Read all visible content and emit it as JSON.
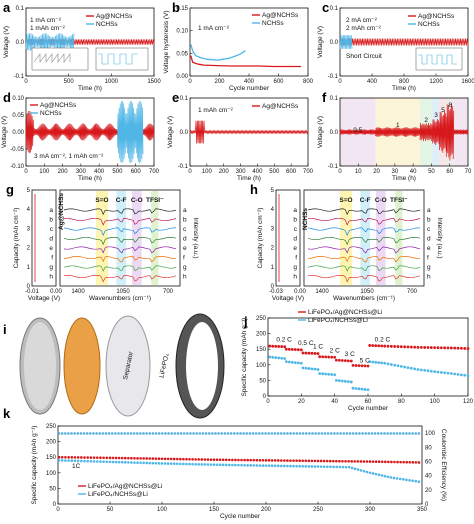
{
  "colors": {
    "red": "#d7191c",
    "blue": "#4fb6e6",
    "black": "#111111"
  },
  "panel_labels": [
    "a",
    "b",
    "c",
    "d",
    "e",
    "f",
    "g",
    "h",
    "i",
    "j",
    "k"
  ],
  "chart_data": [
    {
      "panel": "a",
      "type": "line",
      "annotations": [
        "1 mA cm⁻²",
        "1 mAh cm⁻²"
      ],
      "legend": [
        "Ag@NCHSs",
        "NCHSs"
      ],
      "xlabel": "Time (h)",
      "ylabel": "Voltage (V)",
      "xticks": [
        "0",
        "500",
        "1000",
        "1500"
      ],
      "yticks": [
        "-0.1",
        "0.0",
        "0.1"
      ],
      "xlim": [
        0,
        1600
      ],
      "ylim": [
        -0.15,
        0.15
      ],
      "series": [
        {
          "name": "Ag@NCHSs",
          "x": [
            0,
            1600
          ],
          "amplitude": 0.012
        },
        {
          "name": "NCHSs",
          "x": [
            0,
            600
          ],
          "amplitude": 0.03
        }
      ]
    },
    {
      "panel": "b",
      "type": "line",
      "annotations": [
        "1 mA cm⁻²"
      ],
      "legend": [
        "Ag@NCHSs",
        "NCHSs"
      ],
      "xlabel": "Cycle number",
      "ylabel": "Voltage hysteresis (V)",
      "xticks": [
        "0",
        "200",
        "400",
        "600",
        "800"
      ],
      "yticks": [
        "0.00",
        "0.05",
        "0.10",
        "0.15"
      ],
      "xlim": [
        0,
        850
      ],
      "ylim": [
        0,
        0.15
      ],
      "series": [
        {
          "name": "NCHSs",
          "x": [
            5,
            20,
            40,
            80,
            120,
            160,
            200,
            240,
            280,
            320,
            360,
            380,
            400
          ],
          "y": [
            0.07,
            0.055,
            0.045,
            0.04,
            0.037,
            0.036,
            0.035,
            0.037,
            0.039,
            0.043,
            0.048,
            0.052,
            0.056
          ]
        },
        {
          "name": "Ag@NCHSs",
          "x": [
            5,
            20,
            60,
            100,
            200,
            300,
            400,
            500,
            600,
            700,
            800
          ],
          "y": [
            0.045,
            0.03,
            0.026,
            0.024,
            0.023,
            0.022,
            0.022,
            0.022,
            0.021,
            0.021,
            0.021
          ]
        }
      ]
    },
    {
      "panel": "c",
      "type": "line",
      "annotations": [
        "2 mA cm⁻²",
        "2 mAh cm⁻²",
        "Short Circuit"
      ],
      "legend": [
        "Ag@NCHSs",
        "NCHSs"
      ],
      "xlabel": "Time (h)",
      "ylabel": "Voltage (V)",
      "xticks": [
        "0",
        "400",
        "800",
        "1200",
        "1600"
      ],
      "yticks": [
        "-0.1",
        "0.0",
        "0.1"
      ],
      "xlim": [
        0,
        1600
      ],
      "ylim": [
        -0.15,
        0.15
      ],
      "series": [
        {
          "name": "Ag@NCHSs",
          "x": [
            0,
            1600
          ],
          "amplitude": 0.015
        },
        {
          "name": "NCHSs",
          "x": [
            0,
            150
          ],
          "amplitude": 0.03
        }
      ]
    },
    {
      "panel": "d",
      "type": "line",
      "annotations": [
        "3 mA cm⁻², 1 mAh cm⁻²"
      ],
      "legend": [
        "Ag@NCHSs",
        "NCHSs"
      ],
      "xlabel": "Time (h)",
      "ylabel": "Voltage (V)",
      "xticks": [
        "0",
        "100",
        "200",
        "300",
        "400",
        "500",
        "600",
        "700"
      ],
      "yticks": [
        "-0.10",
        "-0.05",
        "0.00",
        "0.05",
        "0.10"
      ],
      "xlim": [
        0,
        700
      ],
      "ylim": [
        -0.12,
        0.12
      ],
      "series": [
        {
          "name": "Ag@NCHSs",
          "x": [
            0,
            700
          ],
          "amplitude": 0.025
        },
        {
          "name": "NCHSs",
          "x": [
            500,
            640
          ],
          "amplitude": 0.11
        }
      ]
    },
    {
      "panel": "e",
      "type": "line",
      "annotations": [
        "1 mAh cm⁻²"
      ],
      "legend": [
        "Ag@NCHSs"
      ],
      "xlabel": "Time (h)",
      "ylabel": "Voltage (V)",
      "xticks": [
        "0",
        "100",
        "200",
        "300",
        "400",
        "500",
        "600",
        "700"
      ],
      "yticks": [
        "-0.1",
        "0.0",
        "0.1"
      ],
      "xlim": [
        0,
        700
      ],
      "ylim": [
        -0.15,
        0.15
      ],
      "series": [
        {
          "name": "Ag@NCHSs",
          "x": [
            0,
            700
          ],
          "amplitude": 0.005
        }
      ]
    },
    {
      "panel": "f",
      "type": "line",
      "annotations": [
        "0.5",
        "1",
        "2",
        "3",
        "5",
        "8"
      ],
      "xlabel": "Time (h)",
      "ylabel": "Voltage (V)",
      "xticks": [
        "0",
        "10",
        "20",
        "30",
        "40",
        "50",
        "60",
        "70"
      ],
      "yticks": [
        "-0.1",
        "0.0",
        "0.1"
      ],
      "xlim": [
        0,
        72
      ],
      "ylim": [
        -0.15,
        0.15
      ],
      "steps": [
        {
          "rate": "0.5",
          "x": [
            0,
            20
          ],
          "amplitude": 0.01
        },
        {
          "rate": "1",
          "x": [
            20,
            45
          ],
          "amplitude": 0.018
        },
        {
          "rate": "2",
          "x": [
            45,
            52
          ],
          "amplitude": 0.035
        },
        {
          "rate": "3",
          "x": [
            52,
            56
          ],
          "amplitude": 0.05
        },
        {
          "rate": "5",
          "x": [
            56,
            60
          ],
          "amplitude": 0.08
        },
        {
          "rate": "8",
          "x": [
            60,
            64
          ],
          "amplitude": 0.11
        },
        {
          "rate": "0.5",
          "x": [
            64,
            72
          ],
          "amplitude": 0.01
        }
      ]
    },
    {
      "panel": "g",
      "type": "line",
      "legend": [
        "Ag@NCHSs"
      ],
      "stack_labels": [
        "a",
        "b",
        "c",
        "d",
        "e",
        "f",
        "g",
        "h"
      ],
      "band_labels": [
        "S=O",
        "C-F",
        "C-O",
        "TFSI⁻"
      ],
      "xlabel_left": "Voltage (V)",
      "xlabel_right": "Wavenumbers (cm⁻¹)",
      "ylabel_left": "Capacity (mAh cm⁻²)",
      "ylabel_right": "Intensity (a.u.)",
      "xticks_left": [
        "-0.01",
        "0.00"
      ],
      "xticks_right": [
        "1400",
        "1050",
        "700"
      ],
      "yticks": [
        "0",
        "1",
        "2",
        "3",
        "4",
        "5"
      ],
      "ylim": [
        0,
        5
      ]
    },
    {
      "panel": "h",
      "type": "line",
      "legend": [
        "NCHSs"
      ],
      "stack_labels": [
        "a",
        "b",
        "c",
        "d",
        "e",
        "f",
        "g",
        "h"
      ],
      "band_labels": [
        "S=O",
        "C-F",
        "C-O",
        "TFSI⁻"
      ],
      "xlabel_left": "Voltage (V)",
      "xlabel_right": "Wavenumbers (cm⁻¹)",
      "ylabel_left": "Capacity (mAh cm⁻²)",
      "ylabel_right": "Intensity (a.u.)",
      "xticks_left": [
        "-0.03",
        "0.00"
      ],
      "xticks_right": [
        "1400",
        "1050",
        "700"
      ],
      "yticks": [
        "0",
        "1",
        "2",
        "3",
        "4",
        "5"
      ],
      "ylim": [
        0,
        5
      ]
    },
    {
      "panel": "j",
      "type": "scatter",
      "legend": [
        "LiFePO₄/Ag@NCHSs@Li",
        "LiFePO₄/NCHSs@Li"
      ],
      "rate_labels": [
        "0.2 C",
        "0.5 C",
        "1 C",
        "2 C",
        "3 C",
        "5 C",
        "0.2 C"
      ],
      "xlabel": "Cycle number",
      "ylabel": "Specific capacity (mAh g⁻¹)",
      "xticks": [
        "0",
        "20",
        "40",
        "60",
        "80",
        "100",
        "120"
      ],
      "yticks": [
        "0",
        "50",
        "100",
        "150",
        "200",
        "250"
      ],
      "xlim": [
        0,
        120
      ],
      "ylim": [
        0,
        250
      ],
      "series": [
        {
          "name": "LiFePO₄/Ag@NCHSs@Li",
          "x": [
            1,
            10,
            11,
            20,
            21,
            30,
            31,
            40,
            41,
            50,
            51,
            60,
            61,
            70,
            80,
            90,
            100,
            110,
            120
          ],
          "y": [
            160,
            158,
            150,
            148,
            138,
            136,
            126,
            124,
            115,
            112,
            98,
            96,
            162,
            160,
            158,
            156,
            155,
            154,
            152
          ]
        },
        {
          "name": "LiFePO₄/NCHSs@Li",
          "x": [
            1,
            10,
            11,
            20,
            21,
            30,
            31,
            40,
            41,
            50,
            51,
            60,
            61,
            70,
            80,
            90,
            100,
            110,
            120
          ],
          "y": [
            125,
            120,
            110,
            105,
            90,
            85,
            72,
            68,
            50,
            45,
            25,
            20,
            110,
            105,
            95,
            85,
            78,
            72,
            65
          ]
        }
      ]
    },
    {
      "panel": "k",
      "type": "scatter",
      "annotations": [
        "1C"
      ],
      "legend": [
        "LiFePO₄/Ag@NCHSs@Li",
        "LiFePO₄/NCHSs@Li"
      ],
      "xlabel": "Cycle number",
      "ylabel": "Specific capacity (mAh g⁻¹)",
      "ylabel_right": "Coulombic Efficiency (%)",
      "xticks": [
        "0",
        "50",
        "100",
        "150",
        "200",
        "250",
        "300",
        "350"
      ],
      "yticks": [
        "0",
        "50",
        "100",
        "150",
        "200",
        "250"
      ],
      "yticks_right": [
        "0",
        "20",
        "40",
        "60",
        "80",
        "100"
      ],
      "xlim": [
        0,
        350
      ],
      "ylim": [
        0,
        250
      ],
      "ylim_right": [
        0,
        110
      ],
      "series": [
        {
          "name": "LiFePO₄/Ag@NCHSs@Li",
          "x": [
            1,
            50,
            100,
            150,
            200,
            250,
            300,
            350
          ],
          "y": [
            150,
            148,
            145,
            142,
            140,
            138,
            136,
            133
          ]
        },
        {
          "name": "LiFePO₄/NCHSs@Li",
          "x": [
            1,
            50,
            100,
            150,
            200,
            250,
            280,
            300,
            320,
            350
          ],
          "y": [
            140,
            135,
            130,
            126,
            123,
            120,
            118,
            100,
            85,
            70
          ]
        },
        {
          "name": "Coulombic Efficiency",
          "x": [
            1,
            350
          ],
          "y": [
            99.5,
            99.5
          ]
        }
      ]
    }
  ],
  "schematic_i": {
    "labels": [
      "Separator",
      "LiFePO₄"
    ]
  }
}
